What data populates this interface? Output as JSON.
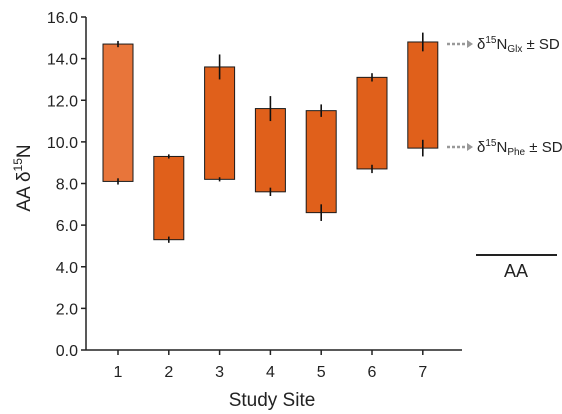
{
  "chart_data": {
    "type": "floating-bar",
    "xlabel": "Study Site",
    "ylabel": {
      "prefix": "AA δ",
      "sup": "15",
      "suffix": "N"
    },
    "ylim": [
      0,
      16
    ],
    "yticks": [
      "0.0",
      "2.0",
      "4.0",
      "6.0",
      "8.0",
      "10.0",
      "12.0",
      "14.0",
      "16.0"
    ],
    "categories": [
      "1",
      "2",
      "3",
      "4",
      "5",
      "6",
      "7"
    ],
    "bars": [
      {
        "site": "1",
        "phe_mean": 8.1,
        "phe_sd": 0.15,
        "glx_mean": 14.7,
        "glx_sd": 0.15,
        "color": "#E8753A"
      },
      {
        "site": "2",
        "phe_mean": 5.3,
        "phe_sd": 0.15,
        "glx_mean": 9.3,
        "glx_sd": 0.1,
        "color": "#E0601B"
      },
      {
        "site": "3",
        "phe_mean": 8.2,
        "phe_sd": 0.1,
        "glx_mean": 13.6,
        "glx_sd": 0.6,
        "color": "#E0601B"
      },
      {
        "site": "4",
        "phe_mean": 7.6,
        "phe_sd": 0.2,
        "glx_mean": 11.6,
        "glx_sd": 0.6,
        "color": "#E0601B"
      },
      {
        "site": "5",
        "phe_mean": 6.6,
        "phe_sd": 0.4,
        "glx_mean": 11.5,
        "glx_sd": 0.3,
        "color": "#E0601B"
      },
      {
        "site": "6",
        "phe_mean": 8.7,
        "phe_sd": 0.2,
        "glx_mean": 13.1,
        "glx_sd": 0.2,
        "color": "#E0601B"
      },
      {
        "site": "7",
        "phe_mean": 9.7,
        "phe_sd": 0.4,
        "glx_mean": 14.8,
        "glx_sd": 0.45,
        "color": "#E0601B"
      }
    ],
    "legend": {
      "glx": {
        "prefix": "δ",
        "sup": "15",
        "base": "N",
        "sub": "Glx",
        "suffix": " ± SD"
      },
      "phe": {
        "prefix": "δ",
        "sup": "15",
        "base": "N",
        "sub": "Phe",
        "suffix": " ± SD"
      },
      "group_label": "AA",
      "arrow_color": "#999999"
    }
  }
}
